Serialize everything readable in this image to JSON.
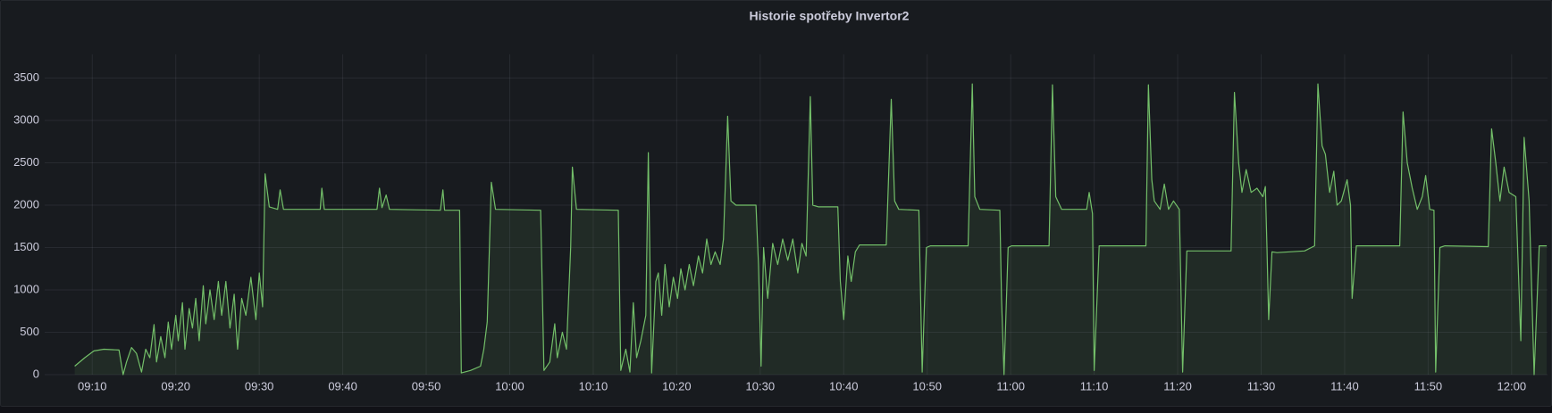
{
  "chart_data": {
    "type": "line",
    "title": "Historie spotřeby Invertor2",
    "x": [
      547.9,
      549.1,
      550.2,
      551.4,
      553.2,
      553.7,
      554.1,
      554.7,
      555.3,
      555.9,
      556.4,
      556.9,
      557.4,
      557.7,
      558.2,
      558.7,
      559.1,
      559.5,
      560.0,
      560.3,
      560.8,
      561.1,
      561.6,
      562.0,
      562.4,
      562.8,
      563.3,
      563.6,
      564.1,
      564.6,
      565.1,
      565.5,
      566.0,
      566.5,
      567.0,
      567.4,
      567.9,
      568.4,
      569.0,
      569.6,
      570.0,
      570.4,
      570.7,
      571.2,
      572.2,
      572.5,
      572.9,
      577.3,
      577.5,
      577.8,
      584.1,
      584.4,
      584.7,
      585.2,
      585.6,
      591.7,
      592.0,
      592.2,
      594.0,
      594.2,
      595.3,
      596.5,
      596.9,
      597.3,
      597.8,
      598.3,
      603.7,
      604.1,
      604.8,
      605.4,
      605.7,
      606.3,
      606.8,
      607.3,
      607.5,
      608.0,
      613.0,
      613.3,
      613.9,
      614.4,
      614.8,
      615.2,
      615.7,
      616.3,
      616.6,
      617.0,
      617.5,
      617.8,
      618.2,
      618.6,
      619.1,
      619.6,
      620.1,
      620.5,
      621.0,
      621.5,
      622.0,
      622.6,
      623.1,
      623.6,
      624.1,
      624.6,
      625.2,
      625.6,
      626.1,
      626.5,
      627.1,
      629.5,
      629.8,
      630.1,
      630.4,
      630.9,
      631.5,
      632.1,
      632.7,
      633.3,
      633.9,
      634.5,
      635.0,
      635.5,
      636.0,
      636.3,
      637.0,
      639.3,
      639.6,
      640.0,
      640.5,
      640.9,
      641.4,
      641.9,
      645.1,
      645.7,
      646.1,
      646.6,
      649.0,
      649.2,
      649.4,
      649.9,
      650.4,
      654.9,
      655.4,
      655.7,
      656.3,
      658.7,
      658.9,
      659.2,
      659.7,
      660.1,
      664.6,
      665.0,
      665.4,
      666.1,
      669.1,
      669.4,
      669.8,
      670.0,
      670.6,
      676.2,
      676.5,
      676.9,
      677.2,
      677.9,
      678.4,
      678.9,
      679.5,
      680.2,
      680.6,
      681.1,
      686.4,
      686.8,
      687.3,
      687.7,
      688.2,
      688.8,
      689.5,
      690.2,
      690.5,
      690.7,
      690.9,
      691.3,
      691.9,
      695.2,
      696.4,
      696.8,
      697.3,
      697.7,
      698.2,
      698.7,
      699.1,
      699.6,
      700.3,
      700.7,
      700.9,
      701.4,
      706.6,
      707.0,
      707.5,
      708.1,
      708.7,
      709.3,
      709.7,
      710.2,
      710.7,
      710.9,
      711.4,
      712.0,
      717.2,
      717.6,
      718.1,
      718.6,
      719.1,
      719.7,
      720.5,
      721.1,
      721.5,
      722.1,
      722.7,
      723.3,
      724.2
    ],
    "series": [
      {
        "color": "#73bf69",
        "values": [
          100,
          200,
          280,
          300,
          290,
          0,
          150,
          320,
          250,
          30,
          300,
          200,
          590,
          150,
          450,
          200,
          620,
          300,
          700,
          400,
          850,
          300,
          780,
          550,
          900,
          400,
          1050,
          600,
          1000,
          650,
          1100,
          700,
          1100,
          550,
          950,
          300,
          900,
          700,
          1150,
          650,
          1200,
          800,
          2370,
          1980,
          1950,
          2180,
          1950,
          1950,
          2200,
          1950,
          1950,
          2200,
          1970,
          2120,
          1950,
          1940,
          2180,
          1940,
          1940,
          20,
          50,
          100,
          300,
          620,
          2270,
          1950,
          1940,
          50,
          150,
          600,
          200,
          500,
          300,
          1500,
          2450,
          1950,
          1940,
          50,
          300,
          30,
          850,
          200,
          400,
          700,
          2620,
          20,
          1100,
          1200,
          700,
          1300,
          800,
          1150,
          900,
          1250,
          1000,
          1300,
          1050,
          1400,
          1200,
          1600,
          1300,
          1450,
          1300,
          1600,
          3050,
          2050,
          2000,
          2000,
          1300,
          100,
          1500,
          900,
          1550,
          1300,
          1600,
          1350,
          1600,
          1200,
          1550,
          1400,
          3280,
          2000,
          1980,
          1980,
          1100,
          650,
          1400,
          1100,
          1450,
          1530,
          1530,
          3250,
          2050,
          1950,
          1940,
          1000,
          30,
          1500,
          1520,
          1520,
          3430,
          2100,
          1950,
          1940,
          900,
          0,
          1500,
          1520,
          1520,
          3420,
          2100,
          1950,
          1950,
          2150,
          1900,
          50,
          1520,
          1520,
          3420,
          2300,
          2050,
          1950,
          2250,
          1950,
          2050,
          1950,
          30,
          1460,
          1460,
          3330,
          2500,
          2150,
          2420,
          2150,
          2200,
          2100,
          2220,
          1500,
          650,
          1450,
          1440,
          1460,
          1520,
          3430,
          2700,
          2600,
          2150,
          2400,
          2000,
          2050,
          2300,
          2000,
          900,
          1520,
          1520,
          3100,
          2500,
          2200,
          1950,
          2100,
          2350,
          1950,
          1940,
          30,
          1500,
          1520,
          1510,
          2900,
          2500,
          2050,
          2450,
          2150,
          2100,
          400,
          2800,
          2050,
          0,
          1520,
          1520
        ]
      }
    ],
    "xlim": [
      544.3,
      724.3
    ],
    "xticks": [
      {
        "value": 550,
        "label": "09:10"
      },
      {
        "value": 560,
        "label": "09:20"
      },
      {
        "value": 570,
        "label": "09:30"
      },
      {
        "value": 580,
        "label": "09:40"
      },
      {
        "value": 590,
        "label": "09:50"
      },
      {
        "value": 600,
        "label": "10:00"
      },
      {
        "value": 610,
        "label": "10:10"
      },
      {
        "value": 620,
        "label": "10:20"
      },
      {
        "value": 630,
        "label": "10:30"
      },
      {
        "value": 640,
        "label": "10:40"
      },
      {
        "value": 650,
        "label": "10:50"
      },
      {
        "value": 660,
        "label": "11:00"
      },
      {
        "value": 670,
        "label": "11:10"
      },
      {
        "value": 680,
        "label": "11:20"
      },
      {
        "value": 690,
        "label": "11:30"
      },
      {
        "value": 700,
        "label": "11:40"
      },
      {
        "value": 710,
        "label": "11:50"
      },
      {
        "value": 720,
        "label": "12:00"
      }
    ],
    "ylim": [
      0,
      3780
    ],
    "yticks": [
      0,
      500,
      1000,
      1500,
      2000,
      2500,
      3000,
      3500
    ],
    "grid": true
  }
}
